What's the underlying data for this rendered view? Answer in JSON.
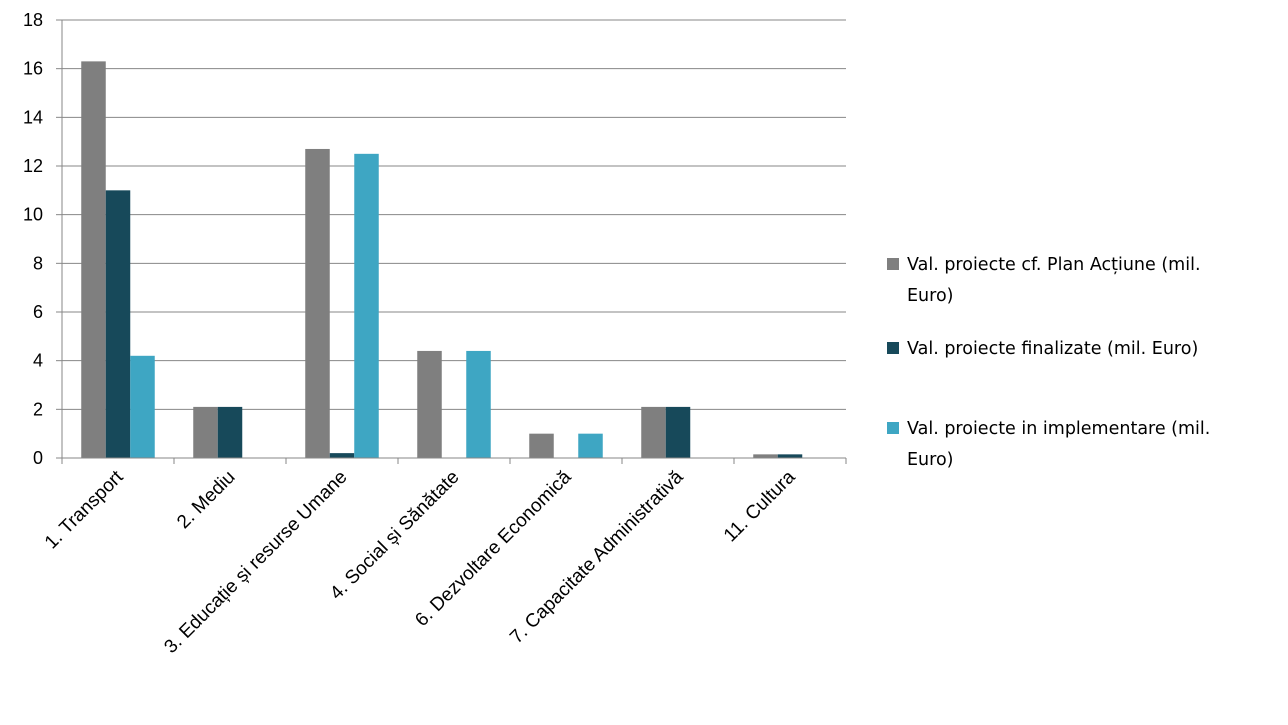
{
  "chart_data": {
    "type": "bar",
    "categories": [
      "1. Transport",
      "2. Mediu",
      "3. Educație și resurse Umane",
      "4. Social și Sănătate",
      "6. Dezvoltare Economică",
      "7. Capacitate Administrativă",
      "11. Cultura"
    ],
    "series": [
      {
        "name": "Val. proiecte cf. Plan Acțiune (mil. Euro)",
        "legend_lines": [
          "Val. proiecte cf. Plan Acțiune (mil.",
          "Euro)"
        ],
        "color": "#7f7f7f",
        "values": [
          16.3,
          2.1,
          12.7,
          4.4,
          1.0,
          2.1,
          0.15
        ]
      },
      {
        "name": "Val. proiecte finalizate (mil. Euro)",
        "legend_lines": [
          "Val. proiecte finalizate (mil. Euro)"
        ],
        "color": "#17495a",
        "values": [
          11.0,
          2.1,
          0.2,
          0,
          0,
          2.1,
          0.15
        ]
      },
      {
        "name": "Val. proiecte in implementare (mil. Euro)",
        "legend_lines": [
          "Val. proiecte in implementare (mil.",
          "Euro)"
        ],
        "color": "#3ea6c3",
        "values": [
          4.2,
          0,
          12.5,
          4.4,
          1.0,
          0,
          0
        ]
      }
    ],
    "ylim": [
      0,
      18
    ],
    "yticks": [
      0,
      2,
      4,
      6,
      8,
      10,
      12,
      14,
      16,
      18
    ],
    "grid": true,
    "legend_position": "right",
    "title": "",
    "xlabel": "",
    "ylabel": ""
  }
}
